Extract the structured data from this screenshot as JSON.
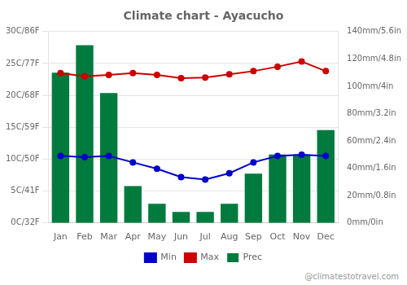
{
  "chart_data": {
    "type": "bar",
    "title": "Climate chart - Ayacucho",
    "categories": [
      "Jan",
      "Feb",
      "Mar",
      "Apr",
      "May",
      "Jun",
      "Jul",
      "Aug",
      "Sep",
      "Oct",
      "Nov",
      "Dec"
    ],
    "series": [
      {
        "name": "Prec",
        "type": "bar",
        "axis": "y2",
        "color": "#007A3D",
        "values": [
          110,
          130,
          95,
          27,
          14,
          8,
          8,
          14,
          36,
          50,
          50,
          68
        ]
      },
      {
        "name": "Min",
        "type": "line",
        "color": "#0000CD",
        "marker": "circle",
        "values": [
          10.5,
          10.3,
          10.5,
          9.5,
          8.5,
          7.2,
          6.8,
          7.8,
          9.5,
          10.5,
          10.7,
          10.5
        ]
      },
      {
        "name": "Max",
        "type": "line",
        "color": "#CC0000",
        "marker": "circle",
        "values": [
          23.5,
          23.0,
          23.2,
          23.5,
          23.2,
          22.7,
          22.8,
          23.3,
          23.8,
          24.5,
          25.3,
          23.8
        ]
      }
    ],
    "ylim": [
      0,
      30
    ],
    "yticks": [
      {
        "value": 0,
        "label": "0C/32F"
      },
      {
        "value": 5,
        "label": "5C/41F"
      },
      {
        "value": 10,
        "label": "10C/50F"
      },
      {
        "value": 15,
        "label": "15C/59F"
      },
      {
        "value": 20,
        "label": "20C/68F"
      },
      {
        "value": 25,
        "label": "25C/77F"
      },
      {
        "value": 30,
        "label": "30C/86F"
      }
    ],
    "y2lim": [
      0,
      140
    ],
    "y2ticks": [
      {
        "value": 0,
        "label": "0mm/0in"
      },
      {
        "value": 20,
        "label": "20mm/0.8in"
      },
      {
        "value": 40,
        "label": "40mm/1.6in"
      },
      {
        "value": 60,
        "label": "60mm/2.4in"
      },
      {
        "value": 80,
        "label": "80mm/3.2in"
      },
      {
        "value": 100,
        "label": "100mm/4in"
      },
      {
        "value": 120,
        "label": "120mm/4.8in"
      },
      {
        "value": 140,
        "label": "140mm/5.6in"
      }
    ],
    "grid": true,
    "legend": "bottom",
    "annotations": [
      "@climatestotravel.com"
    ]
  }
}
